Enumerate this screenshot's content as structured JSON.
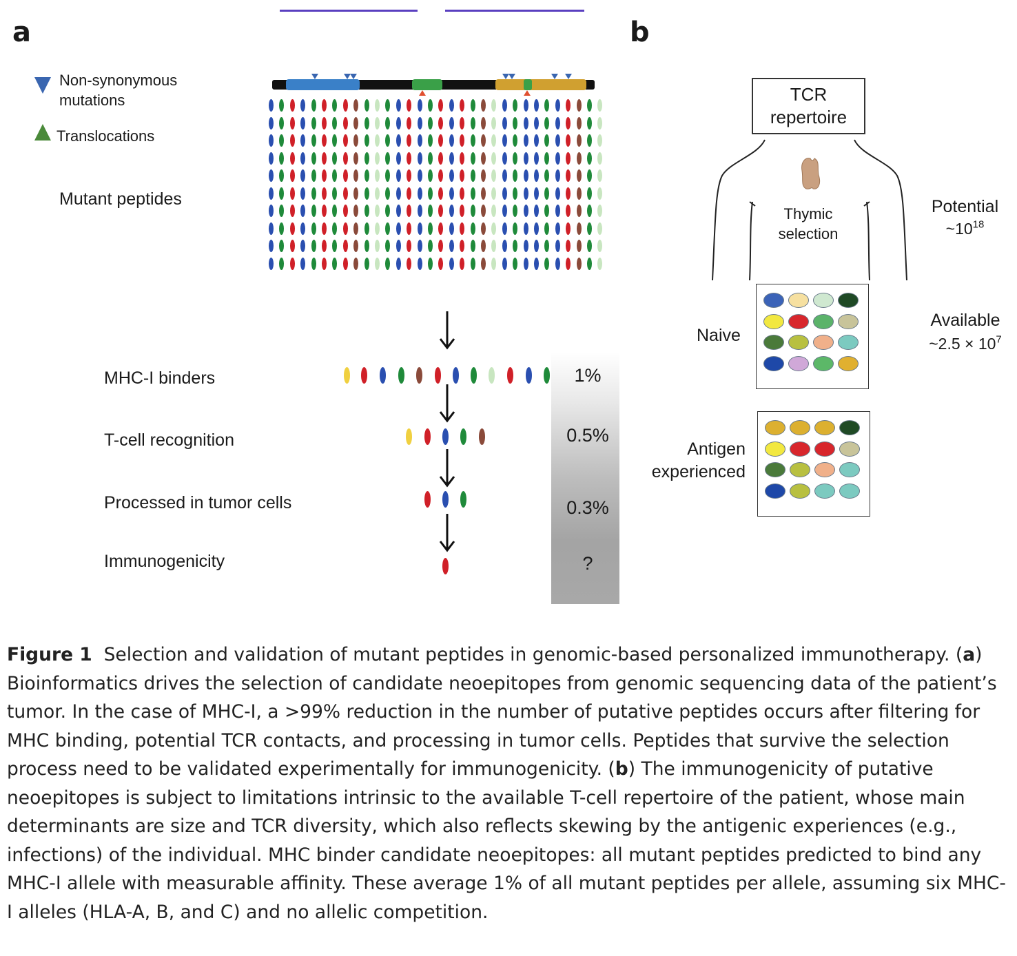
{
  "panel_a": {
    "letter": "a",
    "legend": {
      "nonsyn": "Non-synonymous mutations",
      "nonsyn_line1": "Non-synonymous",
      "nonsyn_line2": "mutations",
      "transloc": "Translocations"
    },
    "mutant_peptides": "Mutant peptides",
    "steps": [
      {
        "label": "MHC-I binders",
        "percent": "1%"
      },
      {
        "label": "T-cell recognition",
        "percent": "0.5%"
      },
      {
        "label": "Processed in tumor cells",
        "percent": "0.3%"
      },
      {
        "label": "Immunogenicity",
        "percent": "?"
      }
    ]
  },
  "panel_b": {
    "letter": "b",
    "tcr_line1": "TCR",
    "tcr_line2": "repertoire",
    "thymic_line1": "Thymic",
    "thymic_line2": "selection",
    "potential_label": "Potential",
    "potential_value": "~10",
    "potential_exp": "18",
    "naive": "Naive",
    "available_label": "Available",
    "available_value": "~2.5 × 10",
    "available_exp": "7",
    "antigen_line1": "Antigen",
    "antigen_line2": "experienced"
  },
  "colors": {
    "blue": "#2a4fb0",
    "green": "#1f8a3a",
    "red": "#d02028",
    "brown": "#8a4a3a",
    "pale_green": "#c8e6c0",
    "yellow": "#f0d040",
    "gene_blue": "#3a80c8",
    "gene_green": "#3aa048",
    "gene_gold": "#d0a030"
  },
  "caption": {
    "fig": "Figure 1",
    "title": "Selection and validation of mutant peptides in genomic-based personalized immunotherapy.",
    "a_letter": "a",
    "a_text": "Bioinformatics drives the selection of candidate neoepitopes from genomic sequencing data of the patient’s tumor. In the case of MHC-I, a >99% reduction in the number of putative peptides occurs after filtering for MHC binding, potential TCR contacts, and processing in tumor cells. Peptides that survive the selection process need to be validated experimentally for immunogenicity.",
    "b_letter": "b",
    "b_text": "The immunogenicity of putative neoepitopes is subject to limitations intrinsic to the available T-cell repertoire of the patient, whose main determinants are size and TCR diversity, which also reflects skewing by the antigenic experiences (e.g., infections) of the individual. MHC binder candidate neoepitopes: all mutant peptides predicted to bind any MHC-I allele with measurable affinity. These average 1% of all mutant peptides per allele, assuming six MHC-I alleles (HLA-A, B, and C) and no allelic competition."
  }
}
